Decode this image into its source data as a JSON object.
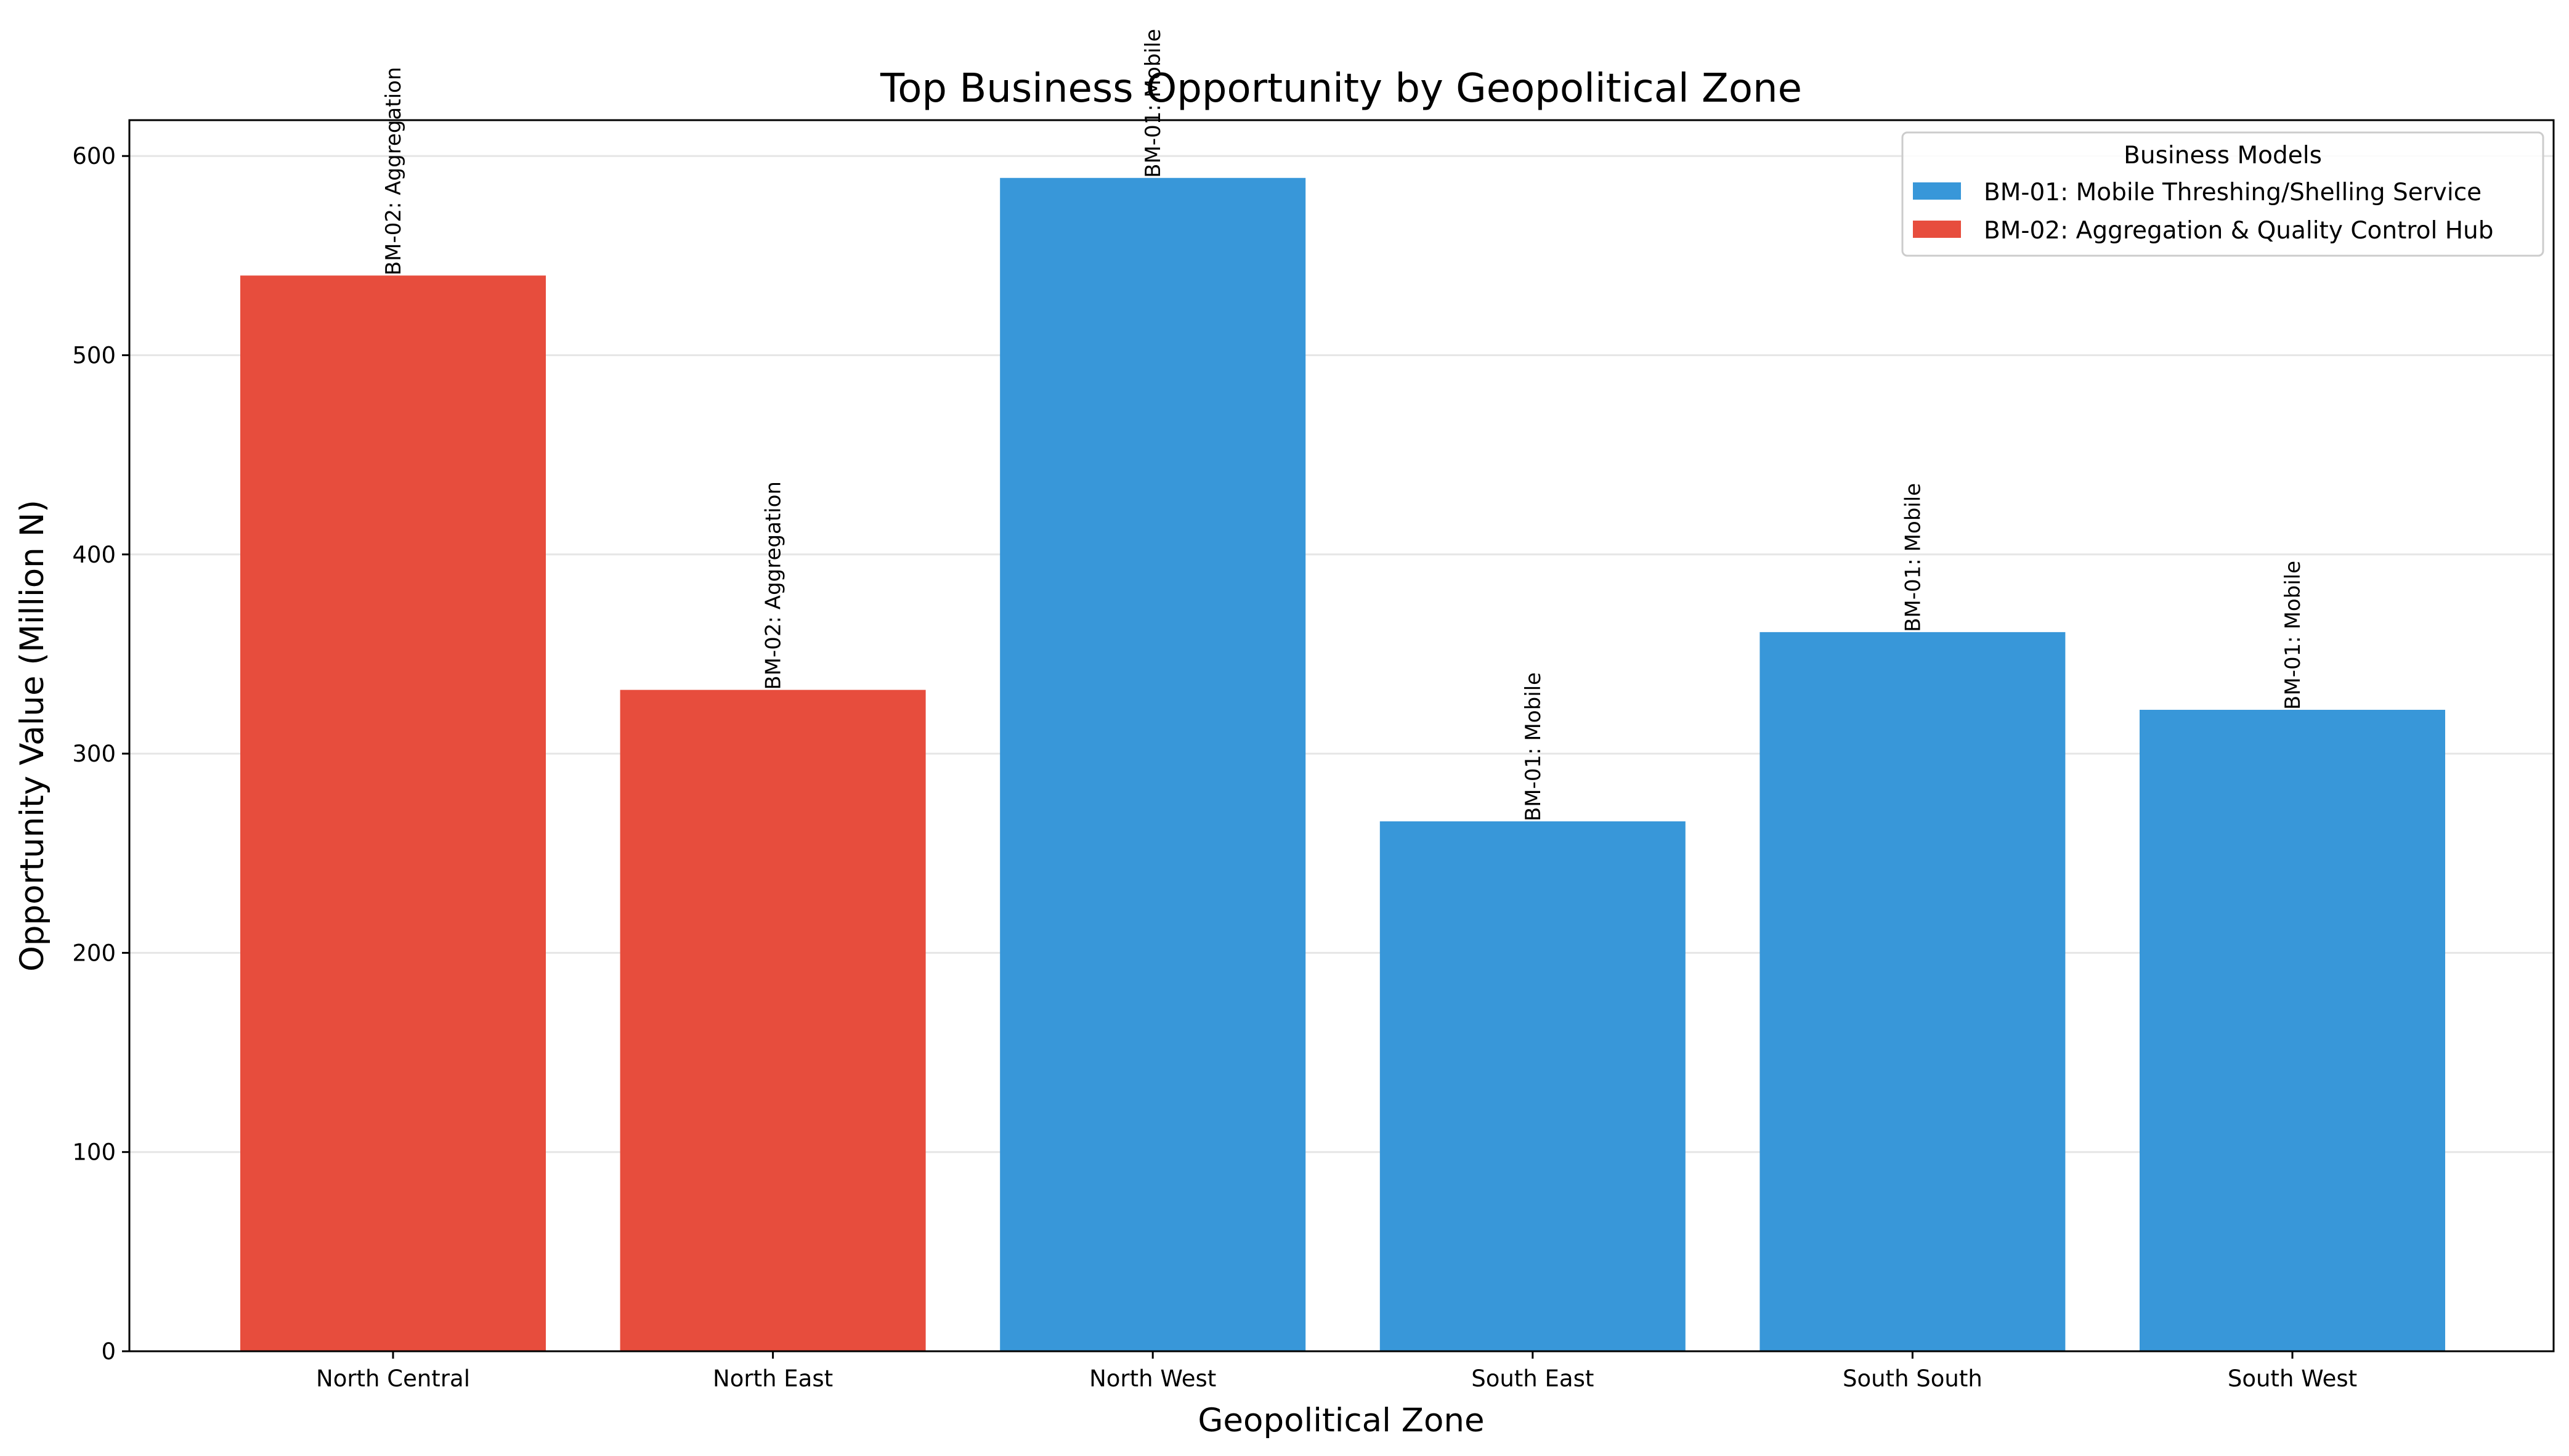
{
  "chart_data": {
    "type": "bar",
    "title": "Top Business Opportunity by Geopolitical Zone",
    "xlabel": "Geopolitical Zone",
    "ylabel": "Opportunity Value (Million N)",
    "ylim": [
      0,
      618
    ],
    "yticks": [
      0,
      100,
      200,
      300,
      400,
      500,
      600
    ],
    "grid": "horizontal",
    "categories": [
      "North Central",
      "North East",
      "North West",
      "South East",
      "South South",
      "South West"
    ],
    "values": [
      540,
      332,
      589,
      266,
      361,
      322
    ],
    "bar_models": [
      "BM-02",
      "BM-02",
      "BM-01",
      "BM-01",
      "BM-01",
      "BM-01"
    ],
    "bar_labels": [
      "BM-02: Aggregation",
      "BM-02: Aggregation",
      "BM-01: Mobile",
      "BM-01: Mobile",
      "BM-01: Mobile",
      "BM-01: Mobile"
    ],
    "models": [
      {
        "id": "BM-01",
        "name": "BM-01: Mobile Threshing/Shelling Service",
        "color": "#3897d9"
      },
      {
        "id": "BM-02",
        "name": "BM-02: Aggregation & Quality Control Hub",
        "color": "#e74d3d"
      }
    ],
    "legend": {
      "title": "Business Models",
      "placement": "top-right"
    }
  }
}
